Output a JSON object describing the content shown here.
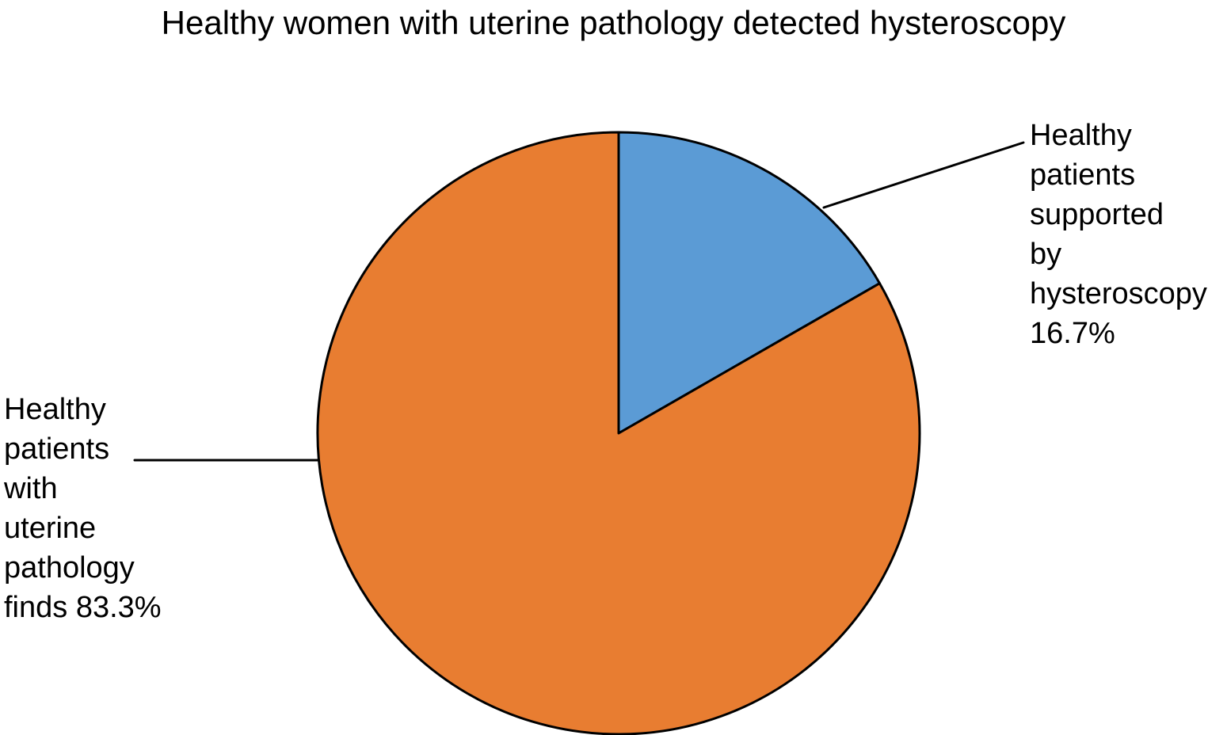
{
  "chart_data": {
    "type": "pie",
    "title": "Healthy women with uterine pathology detected hysteroscopy",
    "start_angle_deg": -90,
    "direction": "clockwise",
    "outline_color": "#000000",
    "background_color": "#FFFFFF",
    "legend": "none",
    "labels_position": "outside-with-leader-lines",
    "total": 100,
    "slices": [
      {
        "name": "Healthy patients supported by hysteroscopy",
        "value": 16.7,
        "percent_label": "16.7%",
        "color": "#5B9BD5",
        "label_text": "Healthy\npatients\nsupported\nby\nhysteroscopy\n16.7%"
      },
      {
        "name": "Healthy patients with uterine pathology finds",
        "value": 83.3,
        "percent_label": "83.3%",
        "color": "#E87D31",
        "label_text": "Healthy\npatients\nwith\nuterine\npathology\nfinds 83.3%"
      }
    ]
  }
}
